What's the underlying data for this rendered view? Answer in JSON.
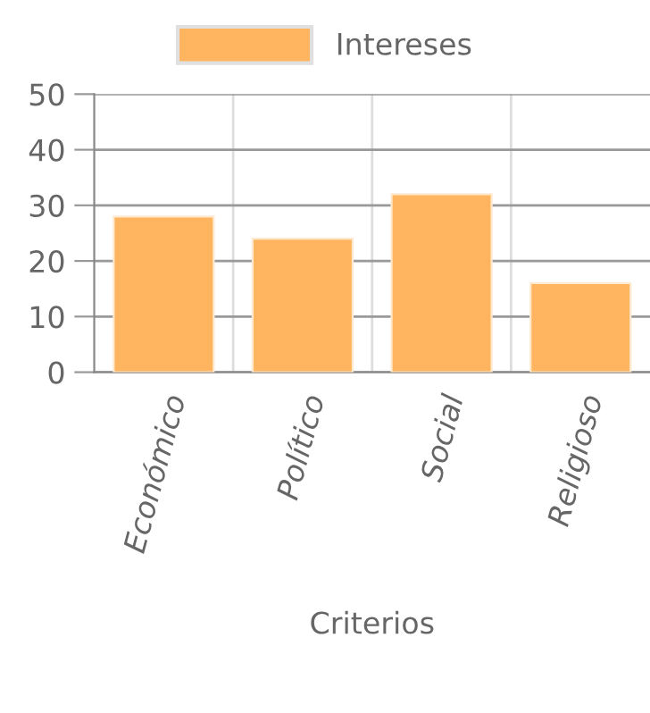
{
  "chart_data": {
    "type": "bar",
    "xlabel": "Criterios",
    "categories": [
      "Económico",
      "Político",
      "Social",
      "Religioso"
    ],
    "series": [
      {
        "name": "Intereses",
        "color": "#ffb55f",
        "values": [
          28,
          24,
          32,
          16
        ]
      }
    ],
    "ylim": [
      0,
      50
    ],
    "yticks": [
      0,
      10,
      20,
      30,
      40,
      50
    ],
    "grid": true,
    "legend": "top"
  }
}
